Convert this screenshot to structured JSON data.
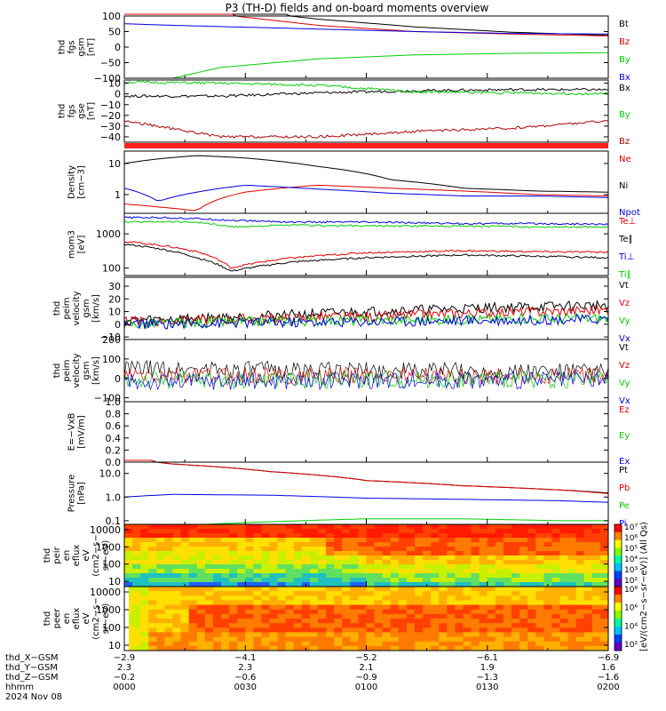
{
  "title": "P3 (TH-D) fields and on-board moments overview",
  "colors": {
    "black": "#000000",
    "red": "#e00000",
    "blue": "#0000e0",
    "green": "#00d000",
    "darkred": "#b00000"
  },
  "chart_data": [
    {
      "type": "line",
      "id": "p1",
      "ylabel": [
        "thd",
        "fgs",
        "gsm",
        "[nT]"
      ],
      "yticks": [
        "100",
        "50",
        "0",
        "−50",
        "−100"
      ],
      "ytick_values": [
        100,
        50,
        0,
        -50,
        -100
      ],
      "ylim": [
        -100,
        100
      ],
      "series": [
        {
          "name": "Bt",
          "color": "black"
        },
        {
          "name": "Bz",
          "color": "red"
        },
        {
          "name": "By",
          "color": "green"
        },
        {
          "name": "Bx",
          "color": "blue"
        }
      ],
      "x": [
        0,
        0.1,
        0.2,
        0.4,
        0.6,
        0.8,
        1.0
      ],
      "lines": {
        "Bt": [
          165,
          150,
          125,
          90,
          65,
          48,
          38
        ],
        "Bz": [
          150,
          130,
          105,
          70,
          50,
          42,
          36
        ],
        "By": [
          -125,
          -100,
          -65,
          -38,
          -25,
          -20,
          -18
        ],
        "Bx": [
          75,
          70,
          66,
          58,
          50,
          44,
          42
        ]
      }
    },
    {
      "type": "line",
      "id": "p2",
      "ylabel": [
        "thd",
        "fgs",
        "gse",
        "[nT]"
      ],
      "yticks": [
        "10",
        "0",
        "−10",
        "−20",
        "−30",
        "−40"
      ],
      "ytick_values": [
        10,
        0,
        -10,
        -20,
        -30,
        -40
      ],
      "ylim": [
        -45,
        13
      ],
      "series": [
        {
          "name": "Bx",
          "color": "black"
        },
        {
          "name": "By",
          "color": "green"
        },
        {
          "name": "Bz",
          "color": "darkred"
        }
      ],
      "x": [
        0,
        0.2,
        0.4,
        0.6,
        0.8,
        1.0
      ],
      "lines": {
        "Bx": [
          -2,
          -2,
          1,
          3,
          4,
          4
        ],
        "By": [
          11,
          10,
          8,
          2,
          1,
          0
        ],
        "Bz": [
          -25,
          -40,
          -40,
          -35,
          -32,
          -25
        ]
      }
    },
    {
      "type": "line",
      "id": "p3",
      "ylabel": [
        "Density",
        "[cm−3]"
      ],
      "yticks": [
        "10",
        "1"
      ],
      "ytick_values": [
        10,
        1
      ],
      "ylim": [
        0.25,
        25
      ],
      "log": true,
      "series": [
        {
          "name": "Ne",
          "color": "red"
        },
        {
          "name": "Ni",
          "color": "black"
        },
        {
          "name": "Npot",
          "color": "blue"
        }
      ],
      "x": [
        0,
        0.07,
        0.15,
        0.25,
        0.4,
        0.55,
        0.7,
        0.85,
        1.0
      ],
      "lines": {
        "Ne": [
          0.5,
          0.4,
          0.3,
          1.2,
          2.0,
          1.6,
          1.3,
          1.0,
          0.9
        ],
        "Ni": [
          10,
          14,
          18,
          15,
          8,
          3,
          1.6,
          1.3,
          1.2
        ],
        "Npot": [
          1.6,
          0.6,
          1.2,
          2.0,
          1.5,
          1.1,
          0.9,
          0.9,
          0.8
        ]
      }
    },
    {
      "type": "line",
      "id": "p4",
      "ylabel": [
        "mom3",
        "[eV]"
      ],
      "yticks": [
        "1000",
        "100"
      ],
      "ytick_values": [
        1000,
        100
      ],
      "ylim": [
        60,
        4000
      ],
      "log": true,
      "series": [
        {
          "name": "Te⊥",
          "color": "red"
        },
        {
          "name": "Te∥",
          "color": "black"
        },
        {
          "name": "Ti⊥",
          "color": "blue"
        },
        {
          "name": "Ti∥",
          "color": "green"
        }
      ],
      "x": [
        0,
        0.08,
        0.15,
        0.22,
        0.35,
        0.5,
        0.7,
        0.85,
        1.0
      ],
      "lines": {
        "Te⊥": [
          600,
          450,
          300,
          100,
          200,
          280,
          320,
          300,
          290
        ],
        "Te∥": [
          500,
          350,
          200,
          80,
          150,
          200,
          240,
          220,
          200
        ],
        "Ti⊥": [
          3000,
          3000,
          2800,
          2500,
          2200,
          2200,
          2000,
          2000,
          1900
        ],
        "Ti∥": [
          2200,
          2300,
          2200,
          1600,
          1800,
          1700,
          1700,
          1600,
          1600
        ]
      }
    },
    {
      "type": "line",
      "id": "p5",
      "ylabel": [
        "thd",
        "peim",
        "velocity",
        "gsm",
        "[km/s]"
      ],
      "yticks": [
        "30",
        "20",
        "10",
        "0",
        "−10"
      ],
      "ytick_values": [
        30,
        20,
        10,
        0,
        -10
      ],
      "ylim": [
        -12,
        37
      ],
      "series": [
        {
          "name": "Vt",
          "color": "black"
        },
        {
          "name": "Vz",
          "color": "red"
        },
        {
          "name": "Vy",
          "color": "green"
        },
        {
          "name": "Vx",
          "color": "blue"
        }
      ],
      "x": [
        0,
        0.25,
        0.5,
        0.75,
        1.0
      ],
      "lines": {
        "Vt": [
          3,
          6,
          10,
          13,
          15
        ],
        "Vz": [
          2,
          4,
          6,
          9,
          11
        ],
        "Vy": [
          0,
          2,
          3,
          4,
          5
        ],
        "Vx": [
          0,
          1,
          2,
          3,
          4
        ]
      }
    },
    {
      "type": "line",
      "id": "p6",
      "ylabel": [
        "thd",
        "peim",
        "velocity",
        "gsm",
        "[km/s]"
      ],
      "yticks": [
        "200",
        "100",
        "0",
        "−100"
      ],
      "ytick_values": [
        200,
        100,
        0,
        -100
      ],
      "ylim": [
        -120,
        200
      ],
      "series": [
        {
          "name": "Vt",
          "color": "black"
        },
        {
          "name": "Vz",
          "color": "red"
        },
        {
          "name": "Vy",
          "color": "green"
        },
        {
          "name": "Vx",
          "color": "blue"
        }
      ],
      "x": [
        0,
        0.5,
        1.0
      ],
      "lines": {
        "Vt": [
          50,
          40,
          35
        ],
        "Vz": [
          10,
          15,
          10
        ],
        "Vy": [
          -10,
          -5,
          -5
        ],
        "Vx": [
          -20,
          -10,
          -10
        ]
      }
    },
    {
      "type": "line",
      "id": "p7",
      "ylabel": [
        "E=−VxB",
        "[mV/m]"
      ],
      "yticks": [
        "1.0",
        "0.8",
        "0.6",
        "0.4",
        "0.2",
        "0.0"
      ],
      "ytick_values": [
        1,
        0.8,
        0.6,
        0.4,
        0.2,
        0
      ],
      "ylim": [
        0,
        1
      ],
      "series": [
        {
          "name": "Ez",
          "color": "red"
        },
        {
          "name": "Ey",
          "color": "green"
        },
        {
          "name": "Ex",
          "color": "blue"
        }
      ],
      "x": [],
      "lines": {}
    },
    {
      "type": "line",
      "id": "p8",
      "ylabel": [
        "Pressure",
        "[nPa]"
      ],
      "yticks": [
        "10.0",
        "1.0",
        "0.1"
      ],
      "ytick_values": [
        10,
        1,
        0.1
      ],
      "ylim": [
        0.07,
        30
      ],
      "log": true,
      "series": [
        {
          "name": "Pt",
          "color": "black"
        },
        {
          "name": "Pb",
          "color": "red"
        },
        {
          "name": "Pe",
          "color": "green"
        },
        {
          "name": "Pi",
          "color": "blue"
        }
      ],
      "x": [
        0,
        0.1,
        0.3,
        0.5,
        0.7,
        0.9,
        1.0
      ],
      "lines": {
        "Pt": [
          40,
          25,
          12,
          5,
          3,
          2,
          1.5
        ],
        "Pb": [
          40,
          25,
          12,
          5,
          3,
          2,
          1.4
        ],
        "Pe": [
          0.05,
          0.06,
          0.09,
          0.12,
          0.12,
          0.1,
          0.1
        ],
        "Pi": [
          1.0,
          1.3,
          1.2,
          0.9,
          0.8,
          0.7,
          0.6
        ]
      }
    },
    {
      "type": "heatmap",
      "id": "p9",
      "ylabel": [
        "thd",
        "peir",
        "en",
        "eflux",
        "eV",
        "(cm2−s−",
        "sr−eV)"
      ],
      "yticks": [
        "10000",
        "1000",
        "100",
        "10"
      ],
      "ytick_values": [
        10000,
        1000,
        100,
        10
      ],
      "ylim": [
        5,
        20000
      ],
      "log": true,
      "colorbar_ticks": [
        "10⁷",
        "10⁶",
        "10⁵",
        "10⁴",
        "10³",
        "10²"
      ]
    },
    {
      "type": "heatmap",
      "id": "p10",
      "ylabel": [
        "thd",
        "peer",
        "en",
        "eflux",
        "eV",
        "(cm2−s−",
        "sr−eV)"
      ],
      "yticks": [
        "10000",
        "1000",
        "100",
        "10"
      ],
      "ytick_values": [
        10000,
        1000,
        100,
        10
      ],
      "ylim": [
        5,
        20000
      ],
      "log": true,
      "colorbar_ticks": [
        "10⁸",
        "10⁶",
        "10⁴",
        "10²"
      ]
    }
  ],
  "colorbar_label": "[eV/(cm2−s−sr−eV)] (All Qs)",
  "xaxis": {
    "row_labels": [
      "thd_X−GSM",
      "thd_Y−GSM",
      "thd_Z−GSM",
      "hhmm",
      "2024 Nov 08"
    ],
    "ticks": [
      {
        "x": 0.0,
        "vals": [
          "−2.9",
          "2.3",
          "−0.2",
          "0000"
        ]
      },
      {
        "x": 0.25,
        "vals": [
          "−4.1",
          "2.3",
          "−0.6",
          "0030"
        ]
      },
      {
        "x": 0.5,
        "vals": [
          "−5.2",
          "2.1",
          "−0.9",
          "0100"
        ]
      },
      {
        "x": 0.75,
        "vals": [
          "−6.1",
          "1.9",
          "−1.3",
          "0130"
        ]
      },
      {
        "x": 1.0,
        "vals": [
          "−6.9",
          "1.6",
          "−1.6",
          "0200"
        ]
      }
    ]
  }
}
